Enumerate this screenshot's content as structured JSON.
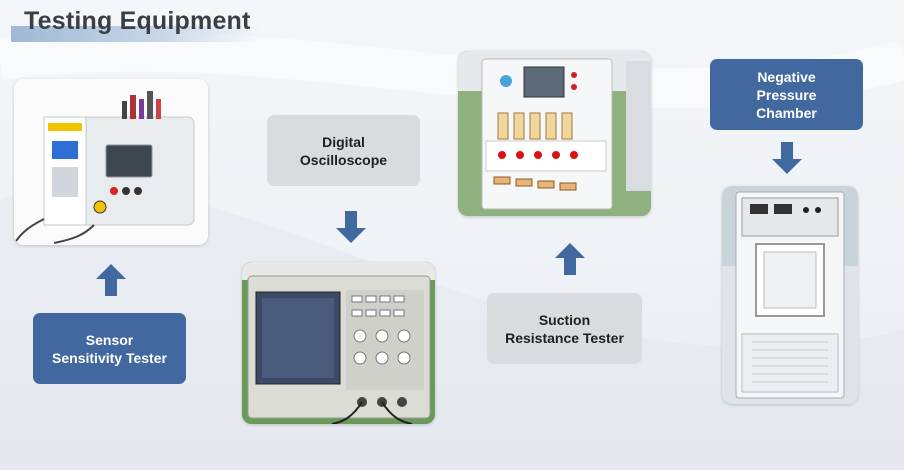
{
  "page": {
    "title": "Testing Equipment"
  },
  "equipment": [
    {
      "label": "Sensor\nSensitivity Tester",
      "arrow": "up-arrow"
    },
    {
      "label": "Digital\nOscilloscope",
      "arrow": "down-arrow"
    },
    {
      "label": "Suction\nResistance Tester",
      "arrow": "up-arrow"
    },
    {
      "label": "Negative\nPressure\nChamber",
      "arrow": "down-arrow"
    }
  ],
  "colors": {
    "accent_blue": "#42699f",
    "label_gray": "#d9dbde",
    "title_text": "#3b3f45"
  }
}
